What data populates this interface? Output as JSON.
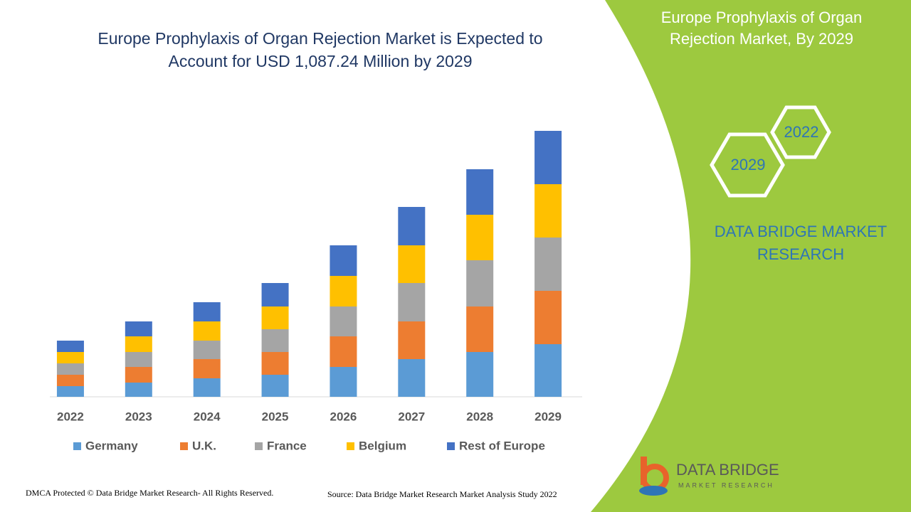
{
  "chart_data": {
    "type": "bar",
    "stacked": true,
    "title": "Europe Prophylaxis of Organ Rejection Market is Expected to Account for USD 1,087.24 Million by 2029",
    "categories": [
      "2022",
      "2023",
      "2024",
      "2025",
      "2026",
      "2027",
      "2028",
      "2029"
    ],
    "series": [
      {
        "name": "Germany",
        "color": "#5b9bd5",
        "values": [
          15,
          20,
          26,
          31,
          42,
          53,
          63,
          74
        ]
      },
      {
        "name": "U.K.",
        "color": "#ed7d31",
        "values": [
          16,
          22,
          27,
          32,
          43,
          53,
          64,
          75
        ]
      },
      {
        "name": "France",
        "color": "#a5a5a5",
        "values": [
          16,
          21,
          26,
          32,
          42,
          54,
          65,
          75
        ]
      },
      {
        "name": "Belgium",
        "color": "#ffc000",
        "values": [
          16,
          22,
          27,
          32,
          43,
          53,
          64,
          75
        ]
      },
      {
        "name": "Rest of Europe",
        "color": "#4472c4",
        "values": [
          16,
          21,
          27,
          33,
          43,
          54,
          64,
          75
        ]
      }
    ]
  },
  "panel": {
    "title": "Europe Prophylaxis of Organ Rejection Market, By 2029",
    "hex_labels": [
      "2022",
      "2029"
    ],
    "brand": "DATA BRIDGE MARKET RESEARCH"
  },
  "logo": {
    "name": "DATA BRIDGE",
    "tagline": "MARKET RESEARCH"
  },
  "footer": {
    "copyright": "DMCA Protected © Data Bridge Market Research- All Rights Reserved.",
    "source": "Source: Data Bridge Market Research Market Analysis Study 2022"
  }
}
